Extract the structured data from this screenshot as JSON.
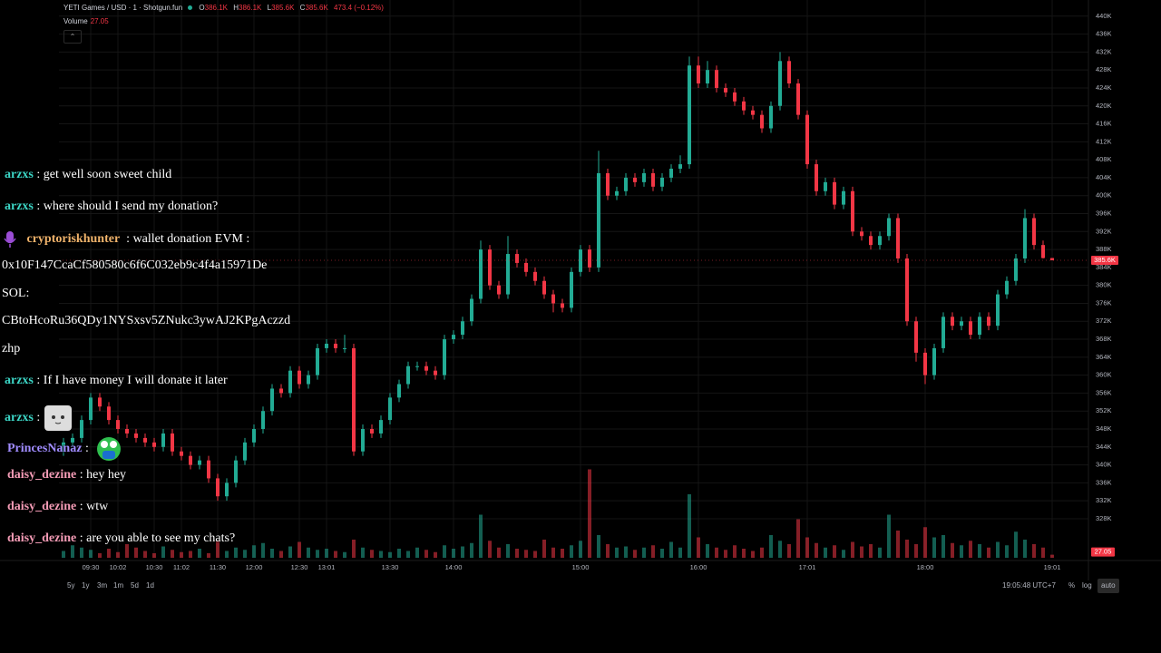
{
  "header": {
    "title": "YETI Games / USD · 1 · Shotgun.fun",
    "o_label": "O",
    "o": "386.1K",
    "h_label": "H",
    "h": "386.1K",
    "l_label": "L",
    "l": "385.6K",
    "c_label": "C",
    "c": "385.6K",
    "change": "473.4 (−0.12%)",
    "volume_label": "Volume",
    "volume": "27.05"
  },
  "chart_data": {
    "type": "candlestick",
    "up_color": "#22ab94",
    "down_color": "#f23645",
    "grid": true,
    "xlim": [
      -0.5,
      113
    ],
    "ylim": [
      319300,
      443600
    ],
    "vol_ylim": [
      0,
      800
    ],
    "yticks": [
      {
        "value": 328000,
        "label": "328K"
      },
      {
        "value": 332000,
        "label": "332K"
      },
      {
        "value": 336000,
        "label": "336K"
      },
      {
        "value": 340000,
        "label": "340K"
      },
      {
        "value": 344000,
        "label": "344K"
      },
      {
        "value": 348000,
        "label": "348K"
      },
      {
        "value": 352000,
        "label": "352K"
      },
      {
        "value": 356000,
        "label": "356K"
      },
      {
        "value": 360000,
        "label": "360K"
      },
      {
        "value": 364000,
        "label": "364K"
      },
      {
        "value": 368000,
        "label": "368K"
      },
      {
        "value": 372000,
        "label": "372K"
      },
      {
        "value": 376000,
        "label": "376K"
      },
      {
        "value": 380000,
        "label": "380K"
      },
      {
        "value": 384000,
        "label": "384K"
      },
      {
        "value": 388000,
        "label": "388K"
      },
      {
        "value": 392000,
        "label": "392K"
      },
      {
        "value": 396000,
        "label": "396K"
      },
      {
        "value": 400000,
        "label": "400K"
      },
      {
        "value": 404000,
        "label": "404K"
      },
      {
        "value": 408000,
        "label": "408K"
      },
      {
        "value": 412000,
        "label": "412K"
      },
      {
        "value": 416000,
        "label": "416K"
      },
      {
        "value": 420000,
        "label": "420K"
      },
      {
        "value": 424000,
        "label": "424K"
      },
      {
        "value": 428000,
        "label": "428K"
      },
      {
        "value": 432000,
        "label": "432K"
      },
      {
        "value": 436000,
        "label": "436K"
      },
      {
        "value": 440000,
        "label": "440K"
      }
    ],
    "xticks": [
      {
        "value": 3,
        "label": "09:30"
      },
      {
        "value": 6,
        "label": "10:02"
      },
      {
        "value": 10,
        "label": "10:30"
      },
      {
        "value": 13,
        "label": "11:02"
      },
      {
        "value": 17,
        "label": "11:30"
      },
      {
        "value": 21,
        "label": "12:00"
      },
      {
        "value": 26,
        "label": "12:30"
      },
      {
        "value": 29,
        "label": "13:01"
      },
      {
        "value": 36,
        "label": "13:30"
      },
      {
        "value": 43,
        "label": "14:00"
      },
      {
        "value": 57,
        "label": "15:00"
      },
      {
        "value": 70,
        "label": "16:00"
      },
      {
        "value": 82,
        "label": "17:01"
      },
      {
        "value": 95,
        "label": "18:00"
      },
      {
        "value": 109,
        "label": "19:01"
      }
    ],
    "last_price_label": "385.6K",
    "last_volume_label": "27.05",
    "candles": [
      [
        343000,
        346000,
        342000,
        345000
      ],
      [
        345000,
        347000,
        344000,
        346000
      ],
      [
        346000,
        351000,
        345000,
        350000
      ],
      [
        350000,
        356000,
        349000,
        355000
      ],
      [
        355000,
        356000,
        352000,
        353000
      ],
      [
        353000,
        354000,
        349000,
        350000
      ],
      [
        350000,
        351000,
        347000,
        348000
      ],
      [
        348000,
        349000,
        346000,
        347000
      ],
      [
        347000,
        348000,
        345000,
        346000
      ],
      [
        346000,
        347000,
        344000,
        345000
      ],
      [
        345000,
        346000,
        343000,
        344000
      ],
      [
        344000,
        348000,
        343000,
        347000
      ],
      [
        347000,
        348000,
        342000,
        343000
      ],
      [
        343000,
        344000,
        341000,
        342000
      ],
      [
        342000,
        343000,
        339000,
        340000
      ],
      [
        340000,
        342000,
        339000,
        341000
      ],
      [
        341000,
        342000,
        336000,
        337000
      ],
      [
        337000,
        338000,
        332000,
        333000
      ],
      [
        333000,
        337000,
        332000,
        336000
      ],
      [
        336000,
        342000,
        335000,
        341000
      ],
      [
        341000,
        346000,
        340000,
        345000
      ],
      [
        345000,
        349000,
        344000,
        348000
      ],
      [
        348000,
        353000,
        347000,
        352000
      ],
      [
        352000,
        358000,
        351000,
        357000
      ],
      [
        357000,
        358000,
        355000,
        356000
      ],
      [
        356000,
        362000,
        355000,
        361000
      ],
      [
        361000,
        362000,
        357000,
        358000
      ],
      [
        358000,
        361000,
        357000,
        360000
      ],
      [
        360000,
        367000,
        359000,
        366000
      ],
      [
        366000,
        368000,
        365000,
        367000
      ],
      [
        367000,
        368000,
        365000,
        366000
      ],
      [
        366000,
        369000,
        365000,
        366000
      ],
      [
        366000,
        367000,
        342000,
        343000
      ],
      [
        343000,
        349000,
        342000,
        348000
      ],
      [
        348000,
        349000,
        346000,
        347000
      ],
      [
        347000,
        351000,
        346000,
        350000
      ],
      [
        350000,
        356000,
        349000,
        355000
      ],
      [
        355000,
        359000,
        354000,
        358000
      ],
      [
        358000,
        363000,
        357000,
        362000
      ],
      [
        362000,
        363000,
        361000,
        362000
      ],
      [
        362000,
        363000,
        360000,
        361000
      ],
      [
        361000,
        362000,
        359000,
        360000
      ],
      [
        360000,
        369000,
        359000,
        368000
      ],
      [
        368000,
        370000,
        367000,
        369000
      ],
      [
        369000,
        373000,
        368000,
        372000
      ],
      [
        372000,
        378000,
        371000,
        377000
      ],
      [
        377000,
        390000,
        376000,
        388000
      ],
      [
        388000,
        389000,
        379000,
        380000
      ],
      [
        380000,
        381000,
        377000,
        378000
      ],
      [
        378000,
        391000,
        377000,
        387000
      ],
      [
        387000,
        388000,
        384000,
        385000
      ],
      [
        385000,
        386000,
        382000,
        383000
      ],
      [
        383000,
        384000,
        380000,
        381000
      ],
      [
        381000,
        382000,
        377000,
        378000
      ],
      [
        378000,
        379000,
        374000,
        376000
      ],
      [
        376000,
        377000,
        374000,
        375000
      ],
      [
        375000,
        384000,
        374000,
        383000
      ],
      [
        383000,
        389000,
        382000,
        388000
      ],
      [
        388000,
        389000,
        383000,
        384000
      ],
      [
        384000,
        410000,
        383000,
        405000
      ],
      [
        405000,
        406000,
        399000,
        400000
      ],
      [
        400000,
        402000,
        399000,
        401000
      ],
      [
        401000,
        405000,
        400000,
        404000
      ],
      [
        404000,
        405000,
        402000,
        403000
      ],
      [
        403000,
        406000,
        402000,
        405000
      ],
      [
        405000,
        406000,
        401000,
        402000
      ],
      [
        402000,
        405000,
        401000,
        404000
      ],
      [
        404000,
        407000,
        403000,
        406000
      ],
      [
        406000,
        409000,
        405000,
        407000
      ],
      [
        407000,
        431000,
        406000,
        429000
      ],
      [
        429000,
        431000,
        424000,
        425000
      ],
      [
        425000,
        430000,
        424000,
        428000
      ],
      [
        428000,
        429000,
        423000,
        424000
      ],
      [
        424000,
        425000,
        422000,
        423000
      ],
      [
        423000,
        424000,
        420000,
        421000
      ],
      [
        421000,
        422000,
        418000,
        419000
      ],
      [
        419000,
        420000,
        417000,
        418000
      ],
      [
        418000,
        419000,
        414000,
        415000
      ],
      [
        415000,
        421000,
        414000,
        420000
      ],
      [
        420000,
        432000,
        419000,
        430000
      ],
      [
        430000,
        431000,
        424000,
        425000
      ],
      [
        425000,
        426000,
        417000,
        418000
      ],
      [
        418000,
        419000,
        406000,
        407000
      ],
      [
        407000,
        408000,
        400000,
        401000
      ],
      [
        401000,
        404000,
        400000,
        403000
      ],
      [
        403000,
        404000,
        397000,
        398000
      ],
      [
        398000,
        402000,
        397000,
        401000
      ],
      [
        401000,
        402000,
        391000,
        392000
      ],
      [
        392000,
        393000,
        390000,
        391000
      ],
      [
        391000,
        392000,
        388000,
        389000
      ],
      [
        389000,
        392000,
        388000,
        391000
      ],
      [
        391000,
        396000,
        390000,
        395000
      ],
      [
        395000,
        396000,
        385000,
        386000
      ],
      [
        386000,
        387000,
        371000,
        372000
      ],
      [
        372000,
        373000,
        363000,
        365000
      ],
      [
        365000,
        366000,
        358000,
        360000
      ],
      [
        360000,
        367000,
        359000,
        366000
      ],
      [
        366000,
        374000,
        365000,
        373000
      ],
      [
        373000,
        374000,
        370000,
        371000
      ],
      [
        371000,
        373000,
        370000,
        372000
      ],
      [
        372000,
        373000,
        368000,
        369000
      ],
      [
        369000,
        374000,
        368000,
        373000
      ],
      [
        373000,
        374000,
        370000,
        371000
      ],
      [
        371000,
        379000,
        370000,
        378000
      ],
      [
        378000,
        382000,
        377000,
        381000
      ],
      [
        381000,
        387000,
        380000,
        386000
      ],
      [
        386000,
        397000,
        385000,
        395000
      ],
      [
        395000,
        396000,
        388000,
        389000
      ],
      [
        389000,
        390000,
        386000,
        386100
      ],
      [
        386100,
        386100,
        385600,
        385600
      ]
    ],
    "volumes": [
      60,
      110,
      90,
      70,
      40,
      80,
      50,
      120,
      90,
      60,
      40,
      100,
      70,
      50,
      60,
      80,
      40,
      150,
      60,
      90,
      70,
      110,
      130,
      80,
      60,
      100,
      140,
      90,
      70,
      80,
      60,
      50,
      160,
      90,
      70,
      60,
      50,
      80,
      60,
      90,
      70,
      50,
      110,
      80,
      100,
      130,
      380,
      150,
      90,
      120,
      80,
      70,
      60,
      160,
      90,
      80,
      110,
      150,
      780,
      200,
      120,
      90,
      100,
      70,
      90,
      110,
      80,
      140,
      90,
      560,
      180,
      120,
      90,
      70,
      110,
      80,
      60,
      90,
      200,
      150,
      120,
      340,
      180,
      130,
      90,
      110,
      70,
      140,
      100,
      120,
      90,
      380,
      240,
      160,
      120,
      270,
      180,
      200,
      130,
      110,
      150,
      120,
      90,
      140,
      110,
      230,
      160,
      120,
      90,
      27.05
    ]
  },
  "chat": {
    "separator": ":",
    "messages": [
      {
        "user": "arzxs",
        "text": "get well soon sweet child"
      },
      {
        "user": "arzxs",
        "text": "where should I send my donation?"
      },
      {
        "user": "cryptoriskhunter",
        "text": "wallet donation EVM :",
        "lines": [
          "0x10F147CcaCf580580c6f6C032eb9c4f4a15971De",
          "SOL:",
          "CBtoHcoRu36QDy1NYSxsv5ZNukc3ywAJ2KPgAczzd",
          "zhp"
        ]
      },
      {
        "user": "arzxs",
        "text": "If I have money I will donate it later"
      },
      {
        "user": "arzxs"
      },
      {
        "user": "PrincesNanaz"
      },
      {
        "user": "daisy_dezine",
        "text": "hey hey"
      },
      {
        "user": "daisy_dezine",
        "text": "wtw"
      },
      {
        "user": "daisy_dezine",
        "text": "are you able to see my chats?"
      }
    ]
  },
  "toolbar": {
    "ranges": [
      "5y",
      "1y",
      "3m",
      "1m",
      "5d",
      "1d"
    ],
    "time": "19:05:48 UTC+7",
    "percent": "%",
    "log": "log",
    "auto": "auto"
  }
}
